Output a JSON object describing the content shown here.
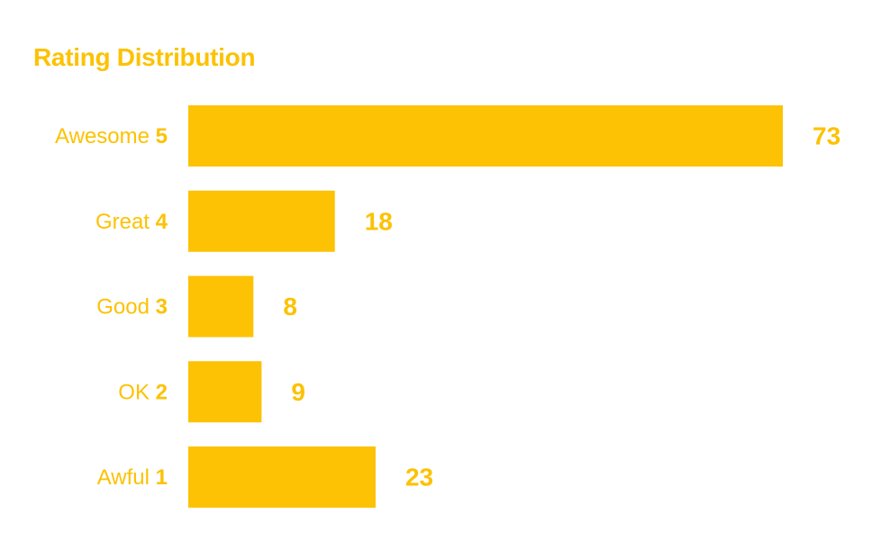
{
  "colors": {
    "accent": "#FCC203"
  },
  "chart_data": {
    "type": "bar",
    "orientation": "horizontal",
    "title": "Rating Distribution",
    "categories": [
      {
        "label": "Awesome",
        "score": "5"
      },
      {
        "label": "Great",
        "score": "4"
      },
      {
        "label": "Good",
        "score": "3"
      },
      {
        "label": "OK",
        "score": "2"
      },
      {
        "label": "Awful",
        "score": "1"
      }
    ],
    "values": [
      73,
      18,
      8,
      9,
      23
    ],
    "data_labels": [
      "73",
      "18",
      "8",
      "9",
      "23"
    ],
    "xlim": [
      0,
      73
    ],
    "grid": false,
    "legend": "none"
  }
}
